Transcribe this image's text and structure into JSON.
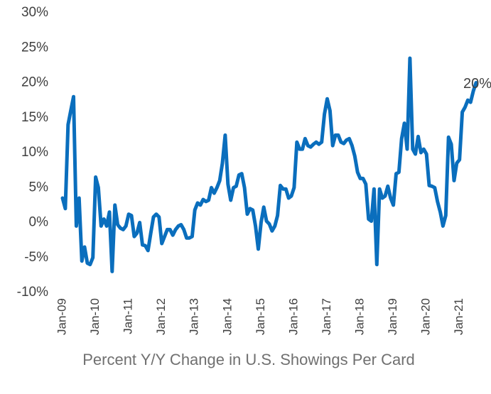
{
  "chart_data": {
    "type": "line",
    "title": "Percent Y/Y Change in U.S. Showings Per Card",
    "annotation": "20%",
    "categories": [
      "Jan-09",
      null,
      null,
      null,
      null,
      null,
      null,
      null,
      null,
      null,
      null,
      null,
      "Jan-10",
      null,
      null,
      null,
      null,
      null,
      null,
      null,
      null,
      null,
      null,
      null,
      "Jan-11",
      null,
      null,
      null,
      null,
      null,
      null,
      null,
      null,
      null,
      null,
      null,
      "Jan-12",
      null,
      null,
      null,
      null,
      null,
      null,
      null,
      null,
      null,
      null,
      null,
      "Jan-13",
      null,
      null,
      null,
      null,
      null,
      null,
      null,
      null,
      null,
      null,
      null,
      "Jan-14",
      null,
      null,
      null,
      null,
      null,
      null,
      null,
      null,
      null,
      null,
      null,
      "Jan-15",
      null,
      null,
      null,
      null,
      null,
      null,
      null,
      null,
      null,
      null,
      null,
      "Jan-16",
      null,
      null,
      null,
      null,
      null,
      null,
      null,
      null,
      null,
      null,
      null,
      "Jan-17",
      null,
      null,
      null,
      null,
      null,
      null,
      null,
      null,
      null,
      null,
      null,
      "Jan-18",
      null,
      null,
      null,
      null,
      null,
      null,
      null,
      null,
      null,
      null,
      null,
      "Jan-19",
      null,
      null,
      null,
      null,
      null,
      null,
      null,
      null,
      null,
      null,
      null,
      "Jan-20",
      null,
      null,
      null,
      null,
      null,
      null,
      null,
      null,
      null,
      null,
      null,
      "Jan-21",
      null,
      null,
      null,
      null,
      null,
      null
    ],
    "series": [
      {
        "name": "Percent Y/Y Change",
        "color": "#0a6ebd",
        "values": [
          3.5,
          2,
          14,
          16,
          18,
          -0.5,
          3.5,
          -5.5,
          -3.5,
          -5.8,
          -6,
          -5,
          6.5,
          5,
          -0.5,
          0.5,
          -0.5,
          1.5,
          -7,
          2.5,
          -0.3,
          -0.8,
          -1,
          -0.5,
          1.2,
          1,
          -2,
          -1.5,
          0,
          -3.2,
          -3.3,
          -4,
          -1.5,
          0.8,
          1.2,
          0.8,
          -3,
          -2,
          -1,
          -1,
          -1.8,
          -1,
          -0.5,
          -0.3,
          -1,
          -2.2,
          -2.2,
          -2,
          1.8,
          2.8,
          2.5,
          3.3,
          3,
          3.2,
          5,
          4.2,
          5,
          6,
          8.5,
          12.5,
          5.5,
          3.2,
          5,
          5.2,
          6.8,
          7,
          5,
          1.2,
          2,
          1.8,
          -0.5,
          -3.8,
          0,
          2.2,
          0.2,
          -0.2,
          -1.2,
          -0.5,
          1,
          5.3,
          4.8,
          4.8,
          3.5,
          3.8,
          5,
          11.5,
          10.5,
          10.5,
          12,
          11,
          10.8,
          11.2,
          11.5,
          11.2,
          11.5,
          15.5,
          17.7,
          16,
          11,
          12.5,
          12.5,
          11.5,
          11.3,
          11.8,
          12,
          11,
          9.5,
          7.2,
          6.3,
          6.3,
          5.5,
          0.5,
          0.2,
          4.8,
          -6,
          4.8,
          3.5,
          3.8,
          5.2,
          3.5,
          2.5,
          7,
          7.2,
          12,
          14.2,
          10.5,
          23.5,
          10.5,
          9.8,
          12.3,
          10,
          10.5,
          9.8,
          5.3,
          5.2,
          5,
          3,
          1.5,
          -0.5,
          1,
          12.2,
          11.2,
          6,
          8.5,
          9,
          15.8,
          16.5,
          17.5,
          17.2,
          18.8,
          20
        ]
      }
    ],
    "ylim": [
      -10,
      30
    ],
    "yticks": [
      {
        "value": -10,
        "label": "-10%"
      },
      {
        "value": -5,
        "label": "-5%"
      },
      {
        "value": 0,
        "label": "0%"
      },
      {
        "value": 5,
        "label": "5%"
      },
      {
        "value": 10,
        "label": "10%"
      },
      {
        "value": 15,
        "label": "15%"
      },
      {
        "value": 20,
        "label": "20%"
      },
      {
        "value": 25,
        "label": "25%"
      },
      {
        "value": 30,
        "label": "30%"
      }
    ],
    "grid": false
  }
}
